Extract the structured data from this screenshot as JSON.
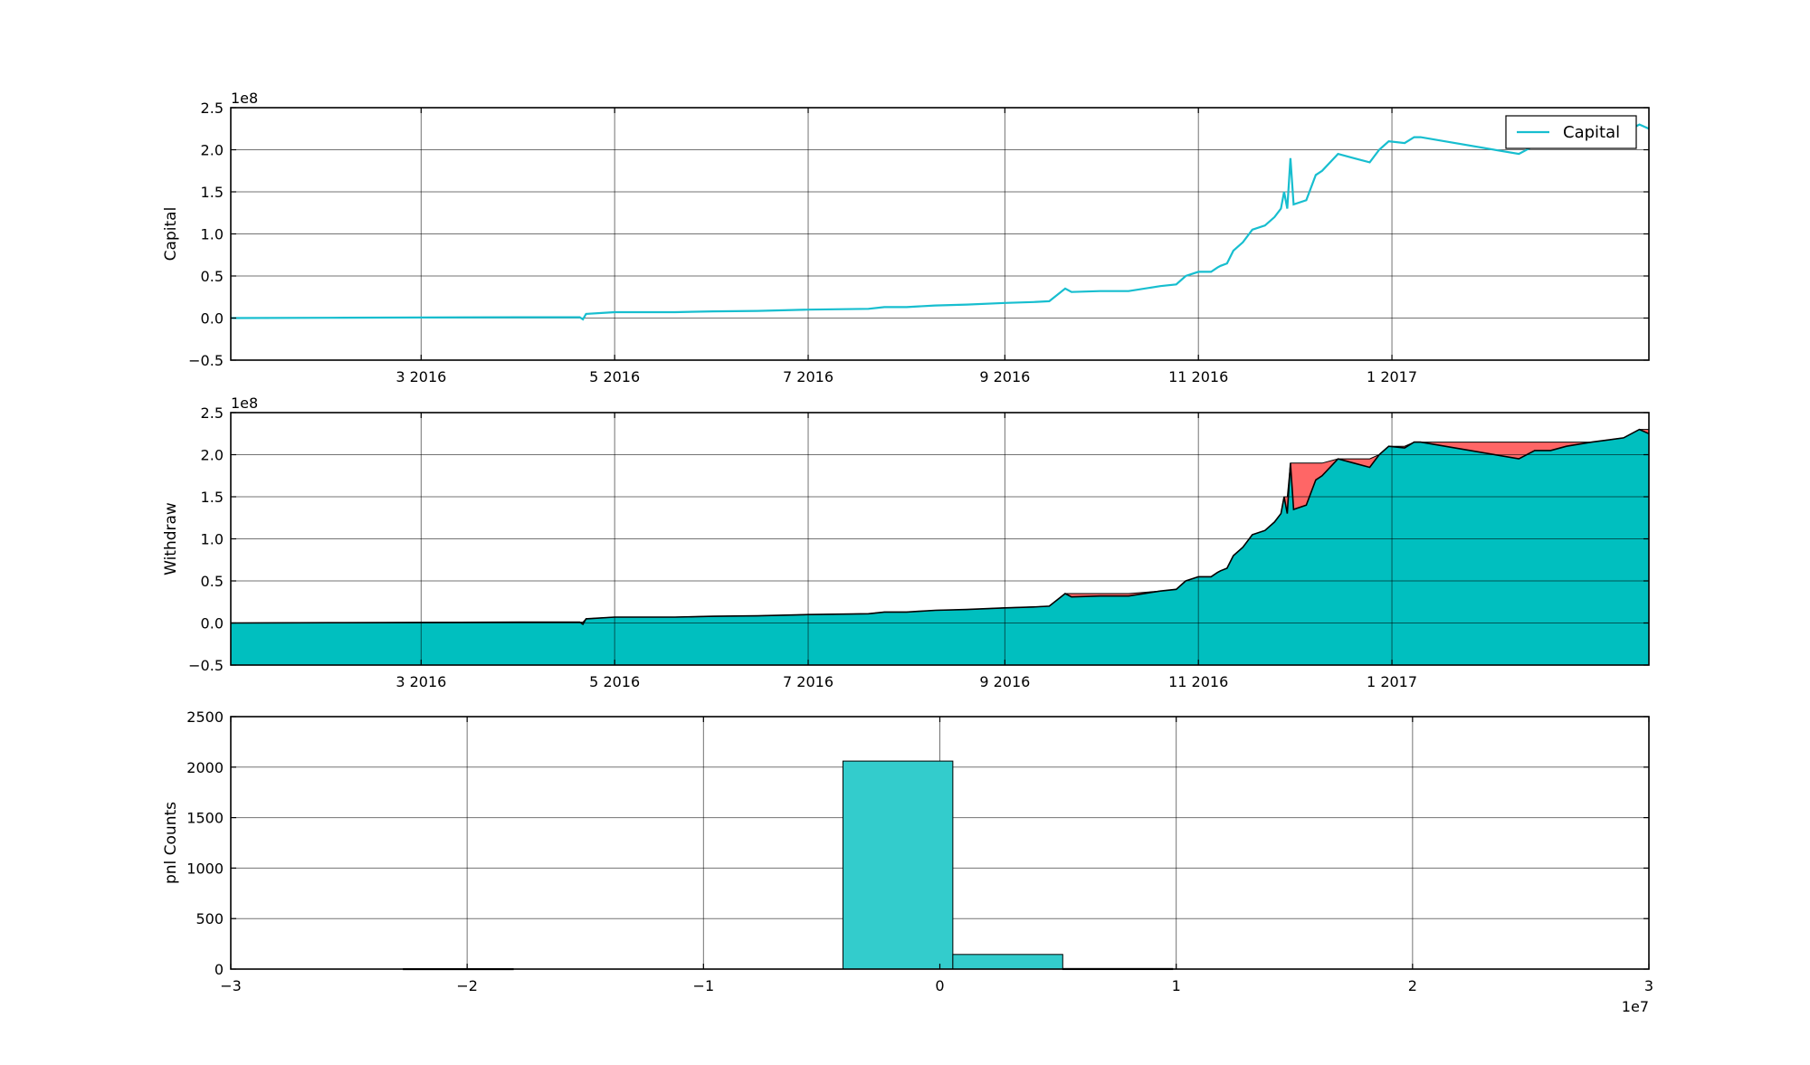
{
  "colors": {
    "capital": "#17BECF",
    "fill": "#00BFBF",
    "drawdown": "#FF6666",
    "hist": "#33CCCC"
  },
  "chart_data": [
    {
      "type": "line",
      "ylabel": "Capital",
      "y_offset_label": "1e8",
      "ylim": [
        -0.5,
        2.5
      ],
      "yticks": [
        -0.5,
        0.0,
        0.5,
        1.0,
        1.5,
        2.0,
        2.5
      ],
      "ytick_labels": [
        "−0.5",
        "0.0",
        "0.5",
        "1.0",
        "1.5",
        "2.0",
        "2.5"
      ],
      "xlim": [
        "2016-01-01",
        "2017-03-23"
      ],
      "xticks": [
        "2016-03-01",
        "2016-05-01",
        "2016-07-01",
        "2016-09-01",
        "2016-11-01",
        "2017-01-01"
      ],
      "xtick_labels": [
        "3 2016",
        "5 2016",
        "7 2016",
        "9 2016",
        "11 2016",
        "1 2017"
      ],
      "grid": true,
      "legend": {
        "position": "top-right",
        "entries": [
          "Capital"
        ]
      },
      "series": [
        {
          "name": "Capital",
          "x": [
            "2016-01-01",
            "2016-02-01",
            "2016-03-01",
            "2016-04-01",
            "2016-04-20",
            "2016-04-21",
            "2016-04-22",
            "2016-05-01",
            "2016-05-20",
            "2016-06-01",
            "2016-06-15",
            "2016-07-01",
            "2016-07-20",
            "2016-07-25",
            "2016-08-01",
            "2016-08-10",
            "2016-08-20",
            "2016-09-01",
            "2016-09-10",
            "2016-09-15",
            "2016-09-20",
            "2016-09-22",
            "2016-10-01",
            "2016-10-10",
            "2016-10-20",
            "2016-10-25",
            "2016-10-28",
            "2016-11-01",
            "2016-11-05",
            "2016-11-07",
            "2016-11-08",
            "2016-11-10",
            "2016-11-12",
            "2016-11-15",
            "2016-11-18",
            "2016-11-22",
            "2016-11-25",
            "2016-11-27",
            "2016-11-28",
            "2016-11-29",
            "2016-11-30",
            "2016-12-01",
            "2016-12-05",
            "2016-12-08",
            "2016-12-10",
            "2016-12-15",
            "2016-12-20",
            "2016-12-25",
            "2016-12-28",
            "2016-12-31",
            "2017-01-05",
            "2017-01-08",
            "2017-01-10",
            "2017-02-10",
            "2017-02-15",
            "2017-02-20",
            "2017-02-25",
            "2017-03-05",
            "2017-03-15",
            "2017-03-20",
            "2017-03-23"
          ],
          "values": [
            0.0,
            0.003,
            0.006,
            0.01,
            0.01,
            -0.015,
            0.05,
            0.07,
            0.07,
            0.08,
            0.085,
            0.1,
            0.11,
            0.13,
            0.13,
            0.15,
            0.16,
            0.18,
            0.19,
            0.2,
            0.35,
            0.31,
            0.32,
            0.32,
            0.38,
            0.4,
            0.5,
            0.55,
            0.55,
            0.6,
            0.62,
            0.65,
            0.8,
            0.9,
            1.05,
            1.1,
            1.2,
            1.3,
            1.5,
            1.3,
            1.9,
            1.35,
            1.4,
            1.7,
            1.75,
            1.95,
            1.9,
            1.85,
            2.0,
            2.1,
            2.08,
            2.15,
            2.15,
            1.95,
            2.05,
            2.05,
            2.1,
            2.15,
            2.2,
            2.3,
            2.25
          ]
        }
      ]
    },
    {
      "type": "area",
      "ylabel": "Withdraw",
      "y_offset_label": "1e8",
      "ylim": [
        -0.5,
        2.5
      ],
      "yticks": [
        -0.5,
        0.0,
        0.5,
        1.0,
        1.5,
        2.0,
        2.5
      ],
      "ytick_labels": [
        "−0.5",
        "0.0",
        "0.5",
        "1.0",
        "1.5",
        "2.0",
        "2.5"
      ],
      "xlim": [
        "2016-01-01",
        "2017-03-23"
      ],
      "xticks": [
        "2016-03-01",
        "2016-05-01",
        "2016-07-01",
        "2016-09-01",
        "2016-11-01",
        "2017-01-01"
      ],
      "xtick_labels": [
        "3 2016",
        "5 2016",
        "7 2016",
        "9 2016",
        "11 2016",
        "1 2017"
      ],
      "grid": true,
      "baseline": -0.5
    },
    {
      "type": "bar",
      "ylabel": "pnl Counts",
      "x_offset_label": "1e7",
      "xlim": [
        -3,
        3
      ],
      "xticks": [
        -3,
        -2,
        -1,
        0,
        1,
        2,
        3
      ],
      "xtick_labels": [
        "−3",
        "−2",
        "−1",
        "0",
        "1",
        "2",
        "3"
      ],
      "ylim": [
        0,
        2500
      ],
      "yticks": [
        0,
        500,
        1000,
        1500,
        2000,
        2500
      ],
      "ytick_labels": [
        "0",
        "500",
        "1000",
        "1500",
        "2000",
        "2500"
      ],
      "grid": true,
      "bin_edges": [
        -2.27,
        -1.805,
        -1.34,
        -0.875,
        -0.41,
        0.055,
        0.52,
        0.985
      ],
      "counts": [
        5,
        0,
        0,
        0,
        2060,
        145,
        6
      ]
    }
  ]
}
